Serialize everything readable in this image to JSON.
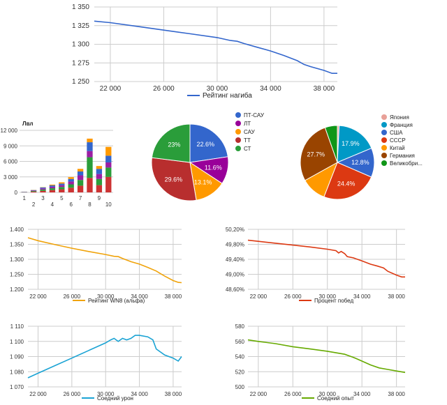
{
  "chart_data": [
    {
      "id": "rating",
      "type": "line",
      "x": [
        20800,
        22000,
        24000,
        26000,
        28000,
        30000,
        31000,
        31500,
        32000,
        33000,
        34000,
        35000,
        36000,
        36500,
        37000,
        38000,
        38600,
        39000
      ],
      "series": [
        {
          "name": "Рейтинг нагиба",
          "color": "#3366cc",
          "values": [
            1331,
            1329,
            1324,
            1319,
            1314,
            1309,
            1305,
            1304,
            1301,
            1296,
            1291,
            1285,
            1278,
            1273,
            1270,
            1265,
            1261,
            1261
          ]
        }
      ],
      "xticks": [
        "22 000",
        "26 000",
        "30 000",
        "34 000",
        "38 000"
      ],
      "xtick_values": [
        22000,
        26000,
        30000,
        34000,
        38000
      ],
      "yticks": [
        "1 250",
        "1 275",
        "1 300",
        "1 325",
        "1 350"
      ],
      "ytick_values": [
        1250,
        1275,
        1300,
        1325,
        1350
      ],
      "xlim": [
        20800,
        39000
      ],
      "ylim": [
        1250,
        1350
      ],
      "grid": true,
      "legend": "bottom"
    },
    {
      "id": "wn8",
      "type": "line",
      "x": [
        20800,
        22000,
        24000,
        26000,
        28000,
        30000,
        31000,
        31500,
        32000,
        33000,
        34000,
        35000,
        36000,
        36500,
        37000,
        38000,
        38600,
        39000
      ],
      "series": [
        {
          "name": "Рейтинг WN8 (альфа)",
          "color": "#f0a30a",
          "values": [
            1372,
            1362,
            1349,
            1337,
            1326,
            1316,
            1310,
            1309,
            1303,
            1292,
            1284,
            1273,
            1261,
            1252,
            1244,
            1229,
            1223,
            1222
          ]
        }
      ],
      "xticks": [
        "22 000",
        "26 000",
        "30 000",
        "34 000",
        "38 000"
      ],
      "xtick_values": [
        22000,
        26000,
        30000,
        34000,
        38000
      ],
      "yticks": [
        "1.200",
        "1.250",
        "1.300",
        "1.350",
        "1.400"
      ],
      "ytick_values": [
        1200,
        1250,
        1300,
        1350,
        1400
      ],
      "xlim": [
        20800,
        39000
      ],
      "ylim": [
        1200,
        1400
      ],
      "grid": true,
      "legend": "bottom"
    },
    {
      "id": "winrate",
      "type": "line",
      "x": [
        20800,
        22000,
        24000,
        26000,
        28000,
        30000,
        31000,
        31300,
        31600,
        32000,
        32300,
        33000,
        34000,
        35000,
        35800,
        36500,
        37000,
        38000,
        38600,
        39000
      ],
      "series": [
        {
          "name": "Процент побед",
          "color": "#dc3912",
          "values": [
            49.91,
            49.88,
            49.83,
            49.78,
            49.73,
            49.67,
            49.63,
            49.57,
            49.61,
            49.55,
            49.47,
            49.44,
            49.36,
            49.27,
            49.22,
            49.17,
            49.08,
            48.98,
            48.93,
            48.93
          ]
        }
      ],
      "xticks": [
        "22 000",
        "26 000",
        "30 000",
        "34 000",
        "38 000"
      ],
      "xtick_values": [
        22000,
        26000,
        30000,
        34000,
        38000
      ],
      "yticks": [
        "48,60%",
        "49,00%",
        "49,40%",
        "49,80%",
        "50,20%"
      ],
      "ytick_values": [
        48.6,
        49.0,
        49.4,
        49.8,
        50.2
      ],
      "xlim": [
        20800,
        39000
      ],
      "ylim": [
        48.6,
        50.2
      ],
      "grid": true,
      "legend": "bottom"
    },
    {
      "id": "damage",
      "type": "line",
      "x": [
        20800,
        22000,
        24000,
        26000,
        28000,
        30000,
        30600,
        31000,
        31500,
        32000,
        32500,
        33000,
        33500,
        34000,
        35000,
        35600,
        36000,
        37000,
        38000,
        38600,
        39000
      ],
      "series": [
        {
          "name": "Соедний урон",
          "color": "#1aa3d4",
          "values": [
            1076,
            1079,
            1084,
            1089,
            1094,
            1099,
            1101,
            1102,
            1100,
            1102,
            1101,
            1102,
            1104,
            1104,
            1103,
            1101,
            1095,
            1091,
            1089,
            1087,
            1090
          ]
        }
      ],
      "xticks": [
        "22 000",
        "26 000",
        "30 000",
        "34 000",
        "38 000"
      ],
      "xtick_values": [
        22000,
        26000,
        30000,
        34000,
        38000
      ],
      "yticks": [
        "1 070",
        "1 080",
        "1 090",
        "1 100",
        "1 110"
      ],
      "ytick_values": [
        1070,
        1080,
        1090,
        1100,
        1110
      ],
      "xlim": [
        20800,
        39000
      ],
      "ylim": [
        1070,
        1110
      ],
      "grid": true,
      "legend": "bottom"
    },
    {
      "id": "exp",
      "type": "line",
      "x": [
        20800,
        22000,
        24000,
        26000,
        28000,
        30000,
        31000,
        32000,
        33000,
        34000,
        35000,
        36000,
        37000,
        38000,
        39000
      ],
      "series": [
        {
          "name": "Соедний опыт",
          "color": "#66aa00",
          "values": [
            562,
            560,
            557,
            553,
            550,
            547,
            545,
            543,
            539,
            534,
            529,
            525,
            523,
            521,
            519
          ]
        }
      ],
      "xticks": [
        "22 000",
        "26 000",
        "30 000",
        "34 000",
        "38 000"
      ],
      "xtick_values": [
        22000,
        26000,
        30000,
        34000,
        38000
      ],
      "yticks": [
        "500",
        "520",
        "540",
        "560",
        "580"
      ],
      "ytick_values": [
        500,
        520,
        540,
        560,
        580
      ],
      "xlim": [
        20800,
        39000
      ],
      "ylim": [
        500,
        580
      ],
      "grid": true,
      "legend": "bottom"
    },
    {
      "id": "levels",
      "type": "bar",
      "stacked": true,
      "title": "Лвл",
      "categories": [
        "1",
        "2",
        "3",
        "4",
        "5",
        "6",
        "7",
        "8",
        "9",
        "10"
      ],
      "xticks": [
        "1",
        "2",
        "3",
        "4",
        "5",
        "6",
        "7",
        "8",
        "9",
        "10"
      ],
      "yticks": [
        "0",
        "3 000",
        "6 000",
        "9 000",
        "12 000"
      ],
      "ytick_values": [
        0,
        3000,
        6000,
        9000,
        12000
      ],
      "ylim": [
        0,
        12000
      ],
      "grid": true,
      "series": [
        {
          "color": "#cc3333",
          "values": [
            40,
            150,
            300,
            450,
            600,
            900,
            1300,
            2800,
            1400,
            3000
          ]
        },
        {
          "color": "#2a9d3a",
          "values": [
            30,
            120,
            250,
            350,
            450,
            650,
            1100,
            4000,
            1200,
            1800
          ]
        },
        {
          "color": "#9b1fa3",
          "values": [
            30,
            100,
            230,
            300,
            350,
            550,
            900,
            1200,
            950,
            1000
          ]
        },
        {
          "color": "#3366cc",
          "values": [
            30,
            80,
            180,
            250,
            300,
            500,
            750,
            1700,
            1000,
            1300
          ]
        },
        {
          "color": "#ff9900",
          "values": [
            0,
            30,
            50,
            150,
            250,
            350,
            500,
            700,
            550,
            1700
          ]
        }
      ]
    },
    {
      "id": "types",
      "type": "pie",
      "labels": [
        "ПТ-САУ",
        "ЛТ",
        "САУ",
        "ТТ",
        "СТ"
      ],
      "values": [
        22.6,
        11.6,
        13.1,
        29.6,
        23
      ],
      "value_labels": [
        "22.6%",
        "11.6%",
        "13.1%",
        "29.6%",
        "23%"
      ],
      "colors": [
        "#3366cc",
        "#990099",
        "#ff9900",
        "#b82e2e",
        "#2a9d3a"
      ],
      "legend": "right"
    },
    {
      "id": "nations",
      "type": "pie",
      "labels": [
        "Япония",
        "Франция",
        "США",
        "СССР",
        "Китай",
        "Германия",
        "Великобри..."
      ],
      "values": [
        0.8,
        17.9,
        12.8,
        24.4,
        11,
        27.7,
        5.4
      ],
      "value_labels": [
        "",
        "17.9%",
        "12.8%",
        "24.4%",
        "",
        "27.7%",
        ""
      ],
      "colors": [
        "#e8a098",
        "#0099c6",
        "#3366cc",
        "#dc3912",
        "#ff9900",
        "#994400",
        "#109618"
      ],
      "legend": "right"
    }
  ]
}
